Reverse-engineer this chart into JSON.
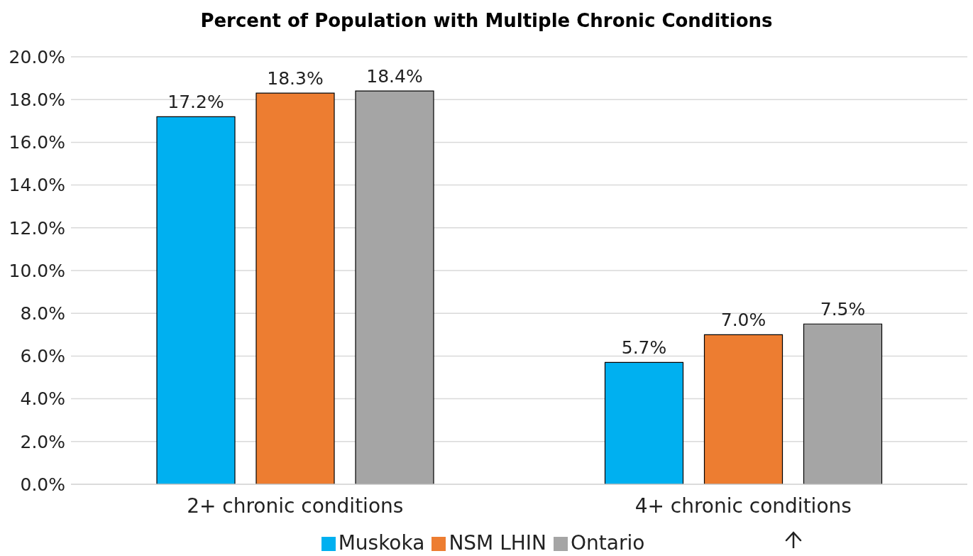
{
  "chart_data": {
    "type": "bar",
    "title": "Percent of Population with Multiple Chronic Conditions",
    "categories": [
      "2+ chronic conditions",
      "4+ chronic conditions"
    ],
    "series": [
      {
        "name": "Muskoka",
        "color": "#00b0f0",
        "values": [
          17.2,
          5.7
        ],
        "value_labels": [
          "17.2%",
          "5.7%"
        ]
      },
      {
        "name": "NSM LHIN",
        "color": "#ed7d31",
        "values": [
          18.3,
          7.0
        ],
        "value_labels": [
          "18.3%",
          "7.0%"
        ]
      },
      {
        "name": "Ontario",
        "color": "#a5a5a5",
        "values": [
          18.4,
          7.5
        ],
        "value_labels": [
          "18.4%",
          "7.5%"
        ]
      }
    ],
    "ylim": [
      0,
      20
    ],
    "yticks": [
      {
        "value": 0,
        "label": "0.0%"
      },
      {
        "value": 2,
        "label": "2.0%"
      },
      {
        "value": 4,
        "label": "4.0%"
      },
      {
        "value": 6,
        "label": "6.0%"
      },
      {
        "value": 8,
        "label": "8.0%"
      },
      {
        "value": 10,
        "label": "10.0%"
      },
      {
        "value": 12,
        "label": "12.0%"
      },
      {
        "value": 14,
        "label": "14.0%"
      },
      {
        "value": 16,
        "label": "16.0%"
      },
      {
        "value": 18,
        "label": "18.0%"
      },
      {
        "value": 20,
        "label": "20.0%"
      }
    ],
    "grid": "y",
    "legend": "bottom"
  }
}
